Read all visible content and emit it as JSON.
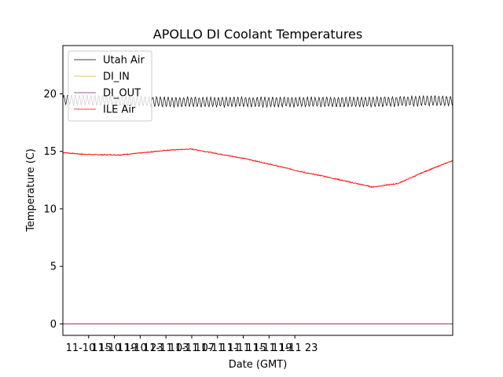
{
  "chart_data": {
    "type": "line",
    "title": "APOLLO DI Coolant Temperatures",
    "xlabel": "Date (GMT)",
    "ylabel": "Temperature (C)",
    "x_unit": "hours since 11-10 11:00",
    "xlim": [
      0,
      60.5
    ],
    "ylim": [
      -1,
      24.2
    ],
    "x_ticks": [
      {
        "x": 4,
        "label": "11-10 15"
      },
      {
        "x": 8,
        "label": "11-10 19"
      },
      {
        "x": 12,
        "label": "11-10 23"
      },
      {
        "x": 16,
        "label": "11-11 03"
      },
      {
        "x": 20,
        "label": "11-11 07"
      },
      {
        "x": 24,
        "label": "11-11 11"
      },
      {
        "x": 28,
        "label": "11-11 15"
      },
      {
        "x": 32,
        "label": "11-11 19"
      },
      {
        "x": 36,
        "label": "11-11 23"
      }
    ],
    "y_ticks": [
      0,
      5,
      10,
      15,
      20
    ],
    "legend_position": "top-left",
    "series": [
      {
        "name": "Utah Air",
        "color": "#000000",
        "x": [
          0,
          8,
          16,
          24,
          32,
          40,
          48,
          56,
          60.5
        ],
        "values": [
          19.5,
          19.4,
          19.3,
          19.3,
          19.3,
          19.3,
          19.3,
          19.4,
          19.4
        ],
        "oscillation_amplitude": 0.4,
        "oscillation_period": 0.6
      },
      {
        "name": "DI_IN",
        "color": "#bcbd22",
        "x": [
          0,
          60.5
        ],
        "values": [
          0,
          0
        ]
      },
      {
        "name": "DI_OUT",
        "color": "#7f1f7f",
        "x": [
          0,
          60.5
        ],
        "values": [
          0,
          0
        ]
      },
      {
        "name": "ILE Air",
        "color": "#ff0000",
        "x": [
          0,
          3,
          6,
          9,
          12,
          16,
          20,
          24,
          28,
          32,
          35,
          38,
          40,
          44,
          48,
          52,
          56,
          60.5
        ],
        "values": [
          14.9,
          14.75,
          14.7,
          14.7,
          14.85,
          15.1,
          15.2,
          14.8,
          14.4,
          13.9,
          13.5,
          13.1,
          12.9,
          12.4,
          11.9,
          12.2,
          13.2,
          14.2
        ]
      }
    ]
  }
}
